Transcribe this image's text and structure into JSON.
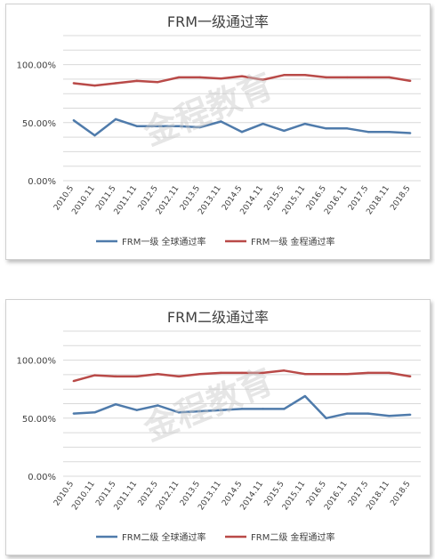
{
  "chart_data": [
    {
      "type": "line",
      "title": "FRM一级通过率",
      "categories": [
        "2010.5",
        "2010.11",
        "2011.5",
        "2011.11",
        "2012.5",
        "2012.11",
        "2013.5",
        "2013.11",
        "2014.5",
        "2014.11",
        "2015.5",
        "2015.11",
        "2016.5",
        "2016.11",
        "2017.5",
        "2018.11",
        "2018.5"
      ],
      "yticks": [
        "0.00%",
        "50.00%",
        "100.00%"
      ],
      "ylim": [
        0,
        1.25
      ],
      "grid": true,
      "legend_position": "bottom",
      "series": [
        {
          "name": "FRM一级 全球通过率",
          "color": "#4f7bab",
          "values": [
            0.52,
            0.39,
            0.53,
            0.47,
            0.47,
            0.47,
            0.46,
            0.51,
            0.42,
            0.49,
            0.43,
            0.49,
            0.45,
            0.45,
            0.42,
            0.42,
            0.41
          ]
        },
        {
          "name": "FRM一级 金程通过率",
          "color": "#b94a48",
          "values": [
            0.84,
            0.82,
            0.84,
            0.86,
            0.85,
            0.89,
            0.89,
            0.88,
            0.9,
            0.87,
            0.91,
            0.91,
            0.89,
            0.89,
            0.89,
            0.89,
            0.86
          ]
        }
      ]
    },
    {
      "type": "line",
      "title": "FRM二级通过率",
      "categories": [
        "2010.5",
        "2010.11",
        "2011.5",
        "2011.11",
        "2012.5",
        "2012.11",
        "2013.5",
        "2013.11",
        "2014.5",
        "2014.11",
        "2015.5",
        "2015.11",
        "2016.5",
        "2016.11",
        "2017.5",
        "2018.11",
        "2018.5"
      ],
      "yticks": [
        "0.00%",
        "50.00%",
        "100.00%"
      ],
      "ylim": [
        0,
        1.25
      ],
      "grid": true,
      "legend_position": "bottom",
      "series": [
        {
          "name": "FRM二级 全球通过率",
          "color": "#4f7bab",
          "values": [
            0.54,
            0.55,
            0.62,
            0.57,
            0.61,
            0.55,
            0.56,
            0.57,
            0.58,
            0.58,
            0.58,
            0.69,
            0.5,
            0.54,
            0.54,
            0.52,
            0.53
          ]
        },
        {
          "name": "FRM二级 金程通过率",
          "color": "#b94a48",
          "values": [
            0.82,
            0.87,
            0.86,
            0.86,
            0.88,
            0.86,
            0.88,
            0.89,
            0.89,
            0.89,
            0.91,
            0.88,
            0.88,
            0.88,
            0.89,
            0.89,
            0.86
          ]
        }
      ]
    }
  ],
  "watermark": "金程教育"
}
